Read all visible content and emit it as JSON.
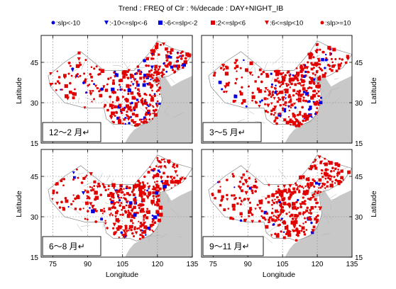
{
  "title": "Trend : FREQ of Clr : %/decade : DAY+NIGHT_IB",
  "legend": [
    {
      "label": ":slp<-10",
      "marker": "circle",
      "color": "#0000e0"
    },
    {
      "label": ":-10<=slp<-6",
      "marker": "triangle",
      "color": "#0000e0"
    },
    {
      "label": ":-6<=slp<-2",
      "marker": "square",
      "color": "#0000e0"
    },
    {
      "label": ":2<=slp<6",
      "marker": "square",
      "color": "#e00000"
    },
    {
      "label": ":6<=slp<10",
      "marker": "triangle",
      "color": "#e00000"
    },
    {
      "label": ":slp>=10",
      "marker": "circle",
      "color": "#e00000"
    }
  ],
  "axes": {
    "xlabel": "Longitude",
    "ylabel": "Latitude",
    "xticks": [
      "75",
      "90",
      "105",
      "120",
      "135"
    ],
    "yticks": [
      "15",
      "30",
      "45"
    ]
  },
  "panels": [
    {
      "season": "12～2 月↵",
      "position": "top-left"
    },
    {
      "season": "3～5 月↵",
      "position": "top-right"
    },
    {
      "season": "6～8 月↵",
      "position": "bottom-left"
    },
    {
      "season": "9～11 月↵",
      "position": "bottom-right"
    }
  ],
  "colors": {
    "positive": "#e00000",
    "negative": "#0000e0",
    "ocean": "#c8c8c8",
    "land": "#ffffff",
    "grid": "#909090"
  }
}
